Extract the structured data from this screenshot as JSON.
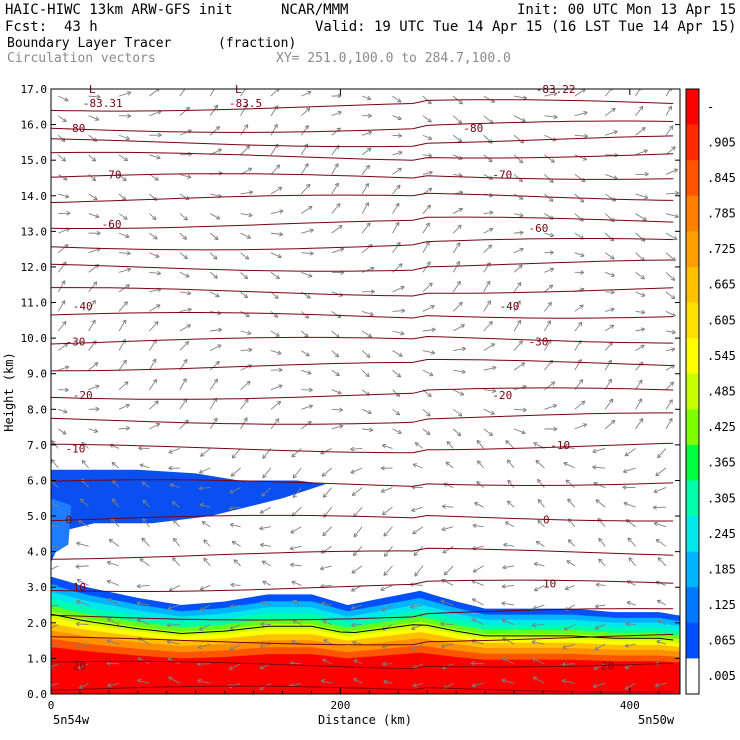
{
  "header": {
    "model": "HAIC-HIWC 13km ARW-GFS init",
    "org": "NCAR/MMM",
    "init": "Init: 00 UTC Mon 13 Apr 15",
    "fcst_label": "Fcst:",
    "fcst_value": "43 h",
    "valid": "Valid: 19 UTC Tue 14 Apr 15 (16 LST Tue 14 Apr 15)",
    "field": "Boundary Layer Tracer",
    "field_units": "(fraction)",
    "vectors": "Circulation vectors",
    "xy": "XY= 251.0,100.0 to 284.7,100.0"
  },
  "chart_data": {
    "type": "heatmap",
    "xlabel": "Distance (km)",
    "ylabel": "Height (km)",
    "xlim": [
      0,
      435
    ],
    "ylim": [
      0,
      17
    ],
    "x_ticks": [
      0,
      200,
      400
    ],
    "y_ticks": [
      "0.0",
      "1.0",
      "2.0",
      "3.0",
      "4.0",
      "5.0",
      "6.0",
      "7.0",
      "8.0",
      "9.0",
      "10.0",
      "11.0",
      "12.0",
      "13.0",
      "14.0",
      "15.0",
      "16.0",
      "17.0"
    ],
    "x_endpoints": {
      "left": "5n54w",
      "right": "5n50w"
    },
    "colorbar_labels": [
      "-",
      ".905",
      ".845",
      ".785",
      ".725",
      ".665",
      ".605",
      ".545",
      ".485",
      ".425",
      ".365",
      ".305",
      ".245",
      ".185",
      ".125",
      ".065",
      ".005"
    ],
    "colorbar_colors": [
      "#ff0000",
      "#ff2a00",
      "#ff5500",
      "#ff7f00",
      "#ff9f00",
      "#ffc000",
      "#ffe000",
      "#ffff00",
      "#c8ff00",
      "#80ff00",
      "#00ff40",
      "#00ffaa",
      "#00e8e8",
      "#00b4ff",
      "#0078ff",
      "#0050ff",
      "#ffffff"
    ],
    "contours": [
      {
        "label": "-83.31",
        "low_marker": "L",
        "x": 22,
        "y": 16.6
      },
      {
        "label": "-83.5",
        "low_marker": "L",
        "x": 123,
        "y": 16.6
      },
      {
        "label": "-83.22",
        "x": 335,
        "y": 17.0
      },
      {
        "label": "-80",
        "x": 10,
        "y": 15.9
      },
      {
        "label": "-80",
        "x": 285,
        "y": 15.9
      },
      {
        "label": "-70",
        "x": 35,
        "y": 14.6
      },
      {
        "label": "-70",
        "x": 305,
        "y": 14.6
      },
      {
        "label": "-60",
        "x": 35,
        "y": 13.2
      },
      {
        "label": "-60",
        "x": 330,
        "y": 13.1
      },
      {
        "label": "-40",
        "x": 15,
        "y": 10.9
      },
      {
        "label": "-40",
        "x": 310,
        "y": 10.9
      },
      {
        "label": "-30",
        "x": 10,
        "y": 9.9
      },
      {
        "label": "-30",
        "x": 330,
        "y": 9.9
      },
      {
        "label": "-20",
        "x": 15,
        "y": 8.4
      },
      {
        "label": "-20",
        "x": 305,
        "y": 8.4
      },
      {
        "label": "-10",
        "x": 10,
        "y": 6.9
      },
      {
        "label": "-10",
        "x": 345,
        "y": 7.0
      },
      {
        "label": "0",
        "x": 10,
        "y": 4.9
      },
      {
        "label": "0",
        "x": 340,
        "y": 4.9
      },
      {
        "label": "10",
        "x": 15,
        "y": 3.0
      },
      {
        "label": "10",
        "x": 340,
        "y": 3.1
      },
      {
        "label": "20",
        "x": 15,
        "y": 0.8
      },
      {
        "label": "20",
        "x": 380,
        "y": 0.8
      }
    ],
    "isotherm_heights": [
      0.1,
      0.8,
      1.5,
      2.2,
      3.0,
      3.9,
      4.9,
      5.9,
      6.9,
      7.7,
      8.4,
      9.2,
      9.9,
      10.6,
      11.3,
      12.0,
      12.6,
      13.2,
      13.9,
      14.5,
      15.1,
      15.5,
      15.9,
      16.5
    ],
    "tracer_boundary_top_km": [
      [
        0,
        3.3
      ],
      [
        25,
        3.0
      ],
      [
        60,
        2.7
      ],
      [
        90,
        2.5
      ],
      [
        120,
        2.6
      ],
      [
        150,
        2.8
      ],
      [
        180,
        2.8
      ],
      [
        205,
        2.5
      ],
      [
        230,
        2.7
      ],
      [
        255,
        2.9
      ],
      [
        280,
        2.6
      ],
      [
        300,
        2.4
      ],
      [
        330,
        2.4
      ],
      [
        360,
        2.4
      ],
      [
        390,
        2.3
      ],
      [
        420,
        2.3
      ],
      [
        435,
        2.2
      ]
    ],
    "upper_layer_km": [
      [
        0,
        6.3
      ],
      [
        60,
        6.3
      ],
      [
        100,
        6.2
      ],
      [
        130,
        6.0
      ],
      [
        170,
        6.0
      ],
      [
        190,
        5.9
      ],
      [
        160,
        5.5
      ],
      [
        110,
        5.0
      ],
      [
        70,
        4.8
      ],
      [
        30,
        4.8
      ],
      [
        10,
        4.6
      ],
      [
        0,
        3.7
      ]
    ]
  }
}
